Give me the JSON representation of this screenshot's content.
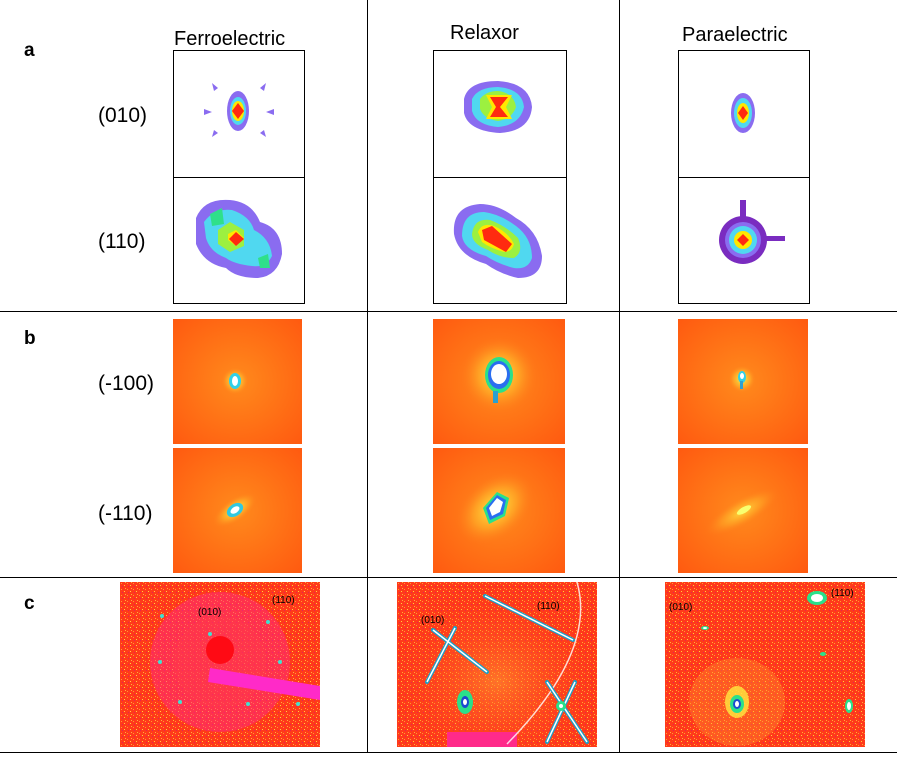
{
  "columns": [
    "Ferroelectric",
    "Relaxor",
    "Paraelectric"
  ],
  "panels": {
    "a": {
      "letter": "a",
      "rows": [
        "(010)",
        "(110)"
      ]
    },
    "b": {
      "letter": "b",
      "rows": [
        "(-100)",
        "(-110)"
      ]
    },
    "c": {
      "letter": "c"
    }
  },
  "pattern_labels": {
    "ferroelectric": {
      "p010": "(010)",
      "p110": "(110)"
    },
    "relaxor": {
      "p010": "(010)",
      "p110": "(110)"
    },
    "paraelectric": {
      "p010": "(010)",
      "p110": "(110)"
    }
  }
}
